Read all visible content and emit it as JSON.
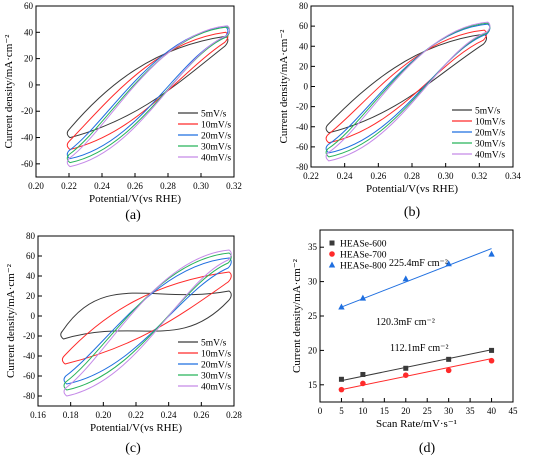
{
  "figure": {
    "panels": [
      "(a)",
      "(b)",
      "(c)",
      "(d)"
    ]
  },
  "colors": {
    "black": "#3a3a3a",
    "red": "#ff2a2a",
    "blue": "#1f6fe0",
    "green": "#28b35a",
    "purple": "#c58ae8"
  },
  "chart_data": [
    {
      "panel": "(a)",
      "type": "line",
      "xlabel": "Potential/V(vs RHE)",
      "ylabel": "Current density/mA·cm⁻²",
      "xlim": [
        0.2,
        0.32
      ],
      "ylim": [
        -70,
        60
      ],
      "xticks": [
        "0.20",
        "0.22",
        "0.24",
        "0.26",
        "0.28",
        "0.30",
        "0.32"
      ],
      "yticks": [
        "-60",
        "-40",
        "-20",
        "0",
        "20",
        "40",
        "60"
      ],
      "xticks_values": [
        0.2,
        0.22,
        0.24,
        0.26,
        0.28,
        0.3,
        0.32
      ],
      "yticks_values": [
        -60,
        -40,
        -20,
        0,
        20,
        40,
        60
      ],
      "legend_position": "bottom-right",
      "series": [
        {
          "name": "5mV/s",
          "color": "#3a3a3a",
          "x0": 0.22,
          "x1": 0.315,
          "y0": -34,
          "y1": 37,
          "width": 16
        },
        {
          "name": "10mV/s",
          "color": "#ff2a2a",
          "x0": 0.22,
          "x1": 0.315,
          "y0": -43,
          "y1": 40,
          "width": 14
        },
        {
          "name": "20mV/s",
          "color": "#1f6fe0",
          "x0": 0.22,
          "x1": 0.315,
          "y0": -50,
          "y1": 44,
          "width": 10
        },
        {
          "name": "30mV/s",
          "color": "#28b35a",
          "x0": 0.22,
          "x1": 0.316,
          "y0": -53,
          "y1": 44,
          "width": 10
        },
        {
          "name": "40mV/s",
          "color": "#c58ae8",
          "x0": 0.22,
          "x1": 0.316,
          "y0": -56,
          "y1": 45,
          "width": 10
        }
      ]
    },
    {
      "panel": "(b)",
      "type": "line",
      "xlabel": "Potential/V(vs RHE)",
      "ylabel": "Current density/mA·cm⁻²",
      "xlim": [
        0.22,
        0.34
      ],
      "ylim": [
        -80,
        80
      ],
      "xticks": [
        "0.22",
        "0.24",
        "0.26",
        "0.28",
        "0.30",
        "0.32",
        "0.34"
      ],
      "yticks": [
        "-80",
        "-60",
        "-40",
        "-20",
        "0",
        "20",
        "40",
        "60",
        "80"
      ],
      "xticks_values": [
        0.22,
        0.24,
        0.26,
        0.28,
        0.3,
        0.32,
        0.34
      ],
      "yticks_values": [
        -80,
        -60,
        -40,
        -20,
        0,
        20,
        40,
        60,
        80
      ],
      "legend_position": "bottom-right",
      "series": [
        {
          "name": "5mV/s",
          "color": "#3a3a3a",
          "x0": 0.23,
          "x1": 0.323,
          "y0": -38,
          "y1": 52,
          "width": 18
        },
        {
          "name": "10mV/s",
          "color": "#ff2a2a",
          "x0": 0.23,
          "x1": 0.323,
          "y0": -48,
          "y1": 56,
          "width": 14
        },
        {
          "name": "20mV/s",
          "color": "#1f6fe0",
          "x0": 0.23,
          "x1": 0.325,
          "y0": -58,
          "y1": 62,
          "width": 12
        },
        {
          "name": "30mV/s",
          "color": "#28b35a",
          "x0": 0.23,
          "x1": 0.325,
          "y0": -62,
          "y1": 63,
          "width": 12
        },
        {
          "name": "40mV/s",
          "color": "#c58ae8",
          "x0": 0.23,
          "x1": 0.325,
          "y0": -66,
          "y1": 64,
          "width": 12
        }
      ]
    },
    {
      "panel": "(c)",
      "type": "line",
      "xlabel": "Potential/V(vs RHE)",
      "ylabel": "Current density/mA·cm⁻²",
      "xlim": [
        0.16,
        0.28
      ],
      "ylim": [
        -90,
        80
      ],
      "xticks": [
        "0.16",
        "0.18",
        "0.20",
        "0.22",
        "0.24",
        "0.26",
        "0.28"
      ],
      "yticks": [
        "-80",
        "-60",
        "-40",
        "-20",
        "0",
        "20",
        "40",
        "60",
        "80"
      ],
      "xticks_values": [
        0.16,
        0.18,
        0.2,
        0.22,
        0.24,
        0.26,
        0.28
      ],
      "yticks_values": [
        -80,
        -60,
        -40,
        -20,
        0,
        20,
        40,
        60,
        80
      ],
      "legend_position": "bottom-right",
      "series": [
        {
          "name": "5mV/s",
          "color": "#3a3a3a",
          "x0": 0.175,
          "x1": 0.277,
          "y0": -15,
          "y1": 25,
          "width": 28
        },
        {
          "name": "10mV/s",
          "color": "#ff2a2a",
          "x0": 0.176,
          "x1": 0.277,
          "y0": -40,
          "y1": 44,
          "width": 20
        },
        {
          "name": "20mV/s",
          "color": "#1f6fe0",
          "x0": 0.177,
          "x1": 0.277,
          "y0": -60,
          "y1": 58,
          "width": 14
        },
        {
          "name": "30mV/s",
          "color": "#28b35a",
          "x0": 0.177,
          "x1": 0.277,
          "y0": -66,
          "y1": 63,
          "width": 14
        },
        {
          "name": "40mV/s",
          "color": "#c58ae8",
          "x0": 0.177,
          "x1": 0.277,
          "y0": -72,
          "y1": 66,
          "width": 14
        }
      ]
    },
    {
      "panel": "(d)",
      "type": "scatter",
      "xlabel": "Scan Rate/mV·s⁻¹",
      "ylabel": "Current density/mA·cm⁻²",
      "xlim": [
        0,
        45
      ],
      "ylim": [
        12.5,
        37.5
      ],
      "xticks": [
        "0",
        "5",
        "10",
        "15",
        "20",
        "25",
        "30",
        "35",
        "40",
        "45"
      ],
      "yticks": [
        "15",
        "20",
        "25",
        "30",
        "35"
      ],
      "xticks_values": [
        0,
        5,
        10,
        15,
        20,
        25,
        30,
        35,
        40,
        45
      ],
      "yticks_values": [
        15,
        20,
        25,
        30,
        35
      ],
      "legend_position": "top-left",
      "series": [
        {
          "name": "HEASe-600",
          "color": "#3a3a3a",
          "marker": "square",
          "x": [
            5,
            10,
            20,
            30,
            40
          ],
          "y": [
            15.8,
            16.5,
            17.4,
            18.7,
            20.0
          ],
          "fit": [
            15.6,
            20.1
          ],
          "label": "120.3mF cm⁻²"
        },
        {
          "name": "HEASe-700",
          "color": "#ff2a2a",
          "marker": "circle",
          "x": [
            5,
            10,
            20,
            30,
            40
          ],
          "y": [
            14.3,
            15.2,
            16.4,
            17.1,
            18.5
          ],
          "fit": [
            14.3,
            18.8
          ],
          "label": "112.1mF cm⁻²"
        },
        {
          "name": "HEASe-800",
          "color": "#1f6fe0",
          "marker": "triangle",
          "x": [
            5,
            10,
            20,
            30,
            40
          ],
          "y": [
            26.3,
            27.6,
            30.4,
            32.6,
            34.0
          ],
          "fit": [
            26.3,
            34.8
          ],
          "label": "225.4mF cm⁻²"
        }
      ]
    }
  ]
}
